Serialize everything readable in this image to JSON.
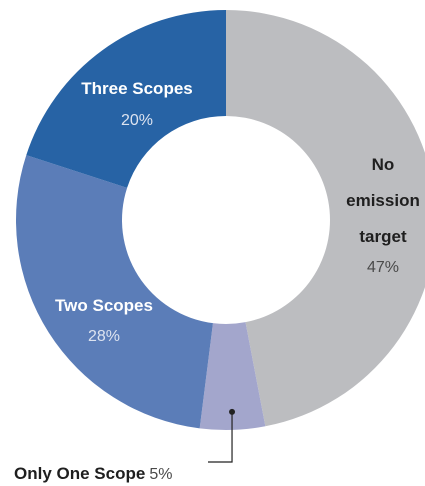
{
  "chart_data": {
    "type": "pie",
    "variant": "donut",
    "title": "",
    "categories": [
      "No emission target",
      "Only One Scope",
      "Two Scopes",
      "Three Scopes"
    ],
    "values": [
      47,
      5,
      28,
      20
    ],
    "unit": "%",
    "labels": [
      {
        "name": "No emission target",
        "name_lines": [
          "No",
          "emission",
          "target"
        ],
        "value_text": "47%"
      },
      {
        "name": "Only One Scope",
        "name_lines": [
          "Only One Scope"
        ],
        "value_text": "5%"
      },
      {
        "name": "Two Scopes",
        "name_lines": [
          "Two Scopes"
        ],
        "value_text": "28%"
      },
      {
        "name": "Three Scopes",
        "name_lines": [
          "Three Scopes"
        ],
        "value_text": "20%"
      }
    ],
    "colors": [
      "#bcbdc0",
      "#a3a6cc",
      "#5b7db8",
      "#2763a5"
    ],
    "label_colors": {
      "dark_name": "#1f1f1f",
      "dark_value": "#4a4a4a",
      "light_name": "#ffffff",
      "light_value": "#dce3f0"
    },
    "start_angle": "top, clockwise",
    "legend": "none"
  }
}
